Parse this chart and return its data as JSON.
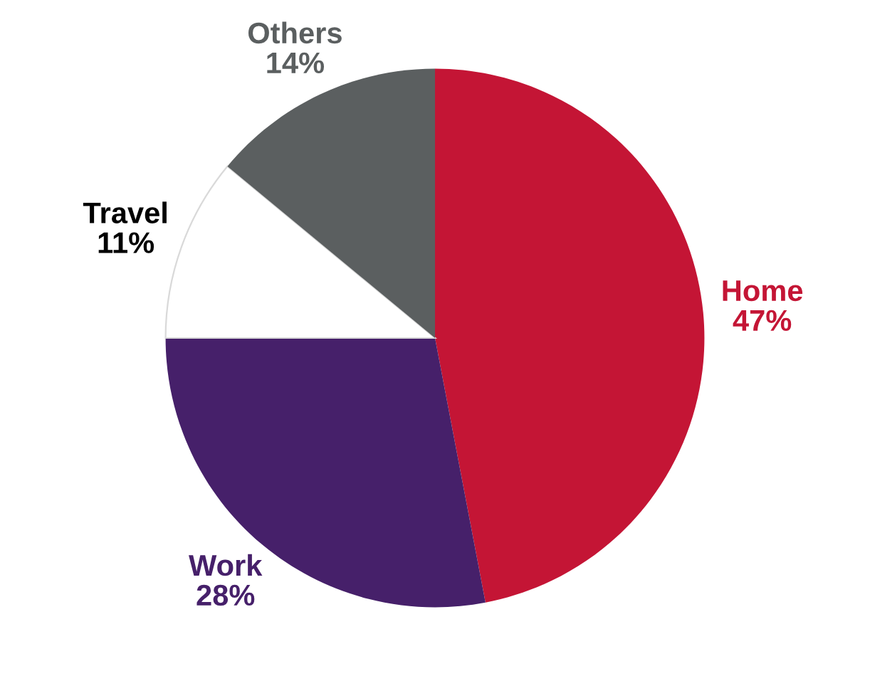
{
  "chart_data": {
    "type": "pie",
    "categories": [
      "Home",
      "Work",
      "Travel",
      "Others"
    ],
    "values": [
      47,
      28,
      11,
      14
    ],
    "colors": [
      "#c41535",
      "#46206a",
      "#ffffff",
      "#5b5f60"
    ],
    "value_labels": [
      "47%",
      "28%",
      "11%",
      "14%"
    ]
  }
}
